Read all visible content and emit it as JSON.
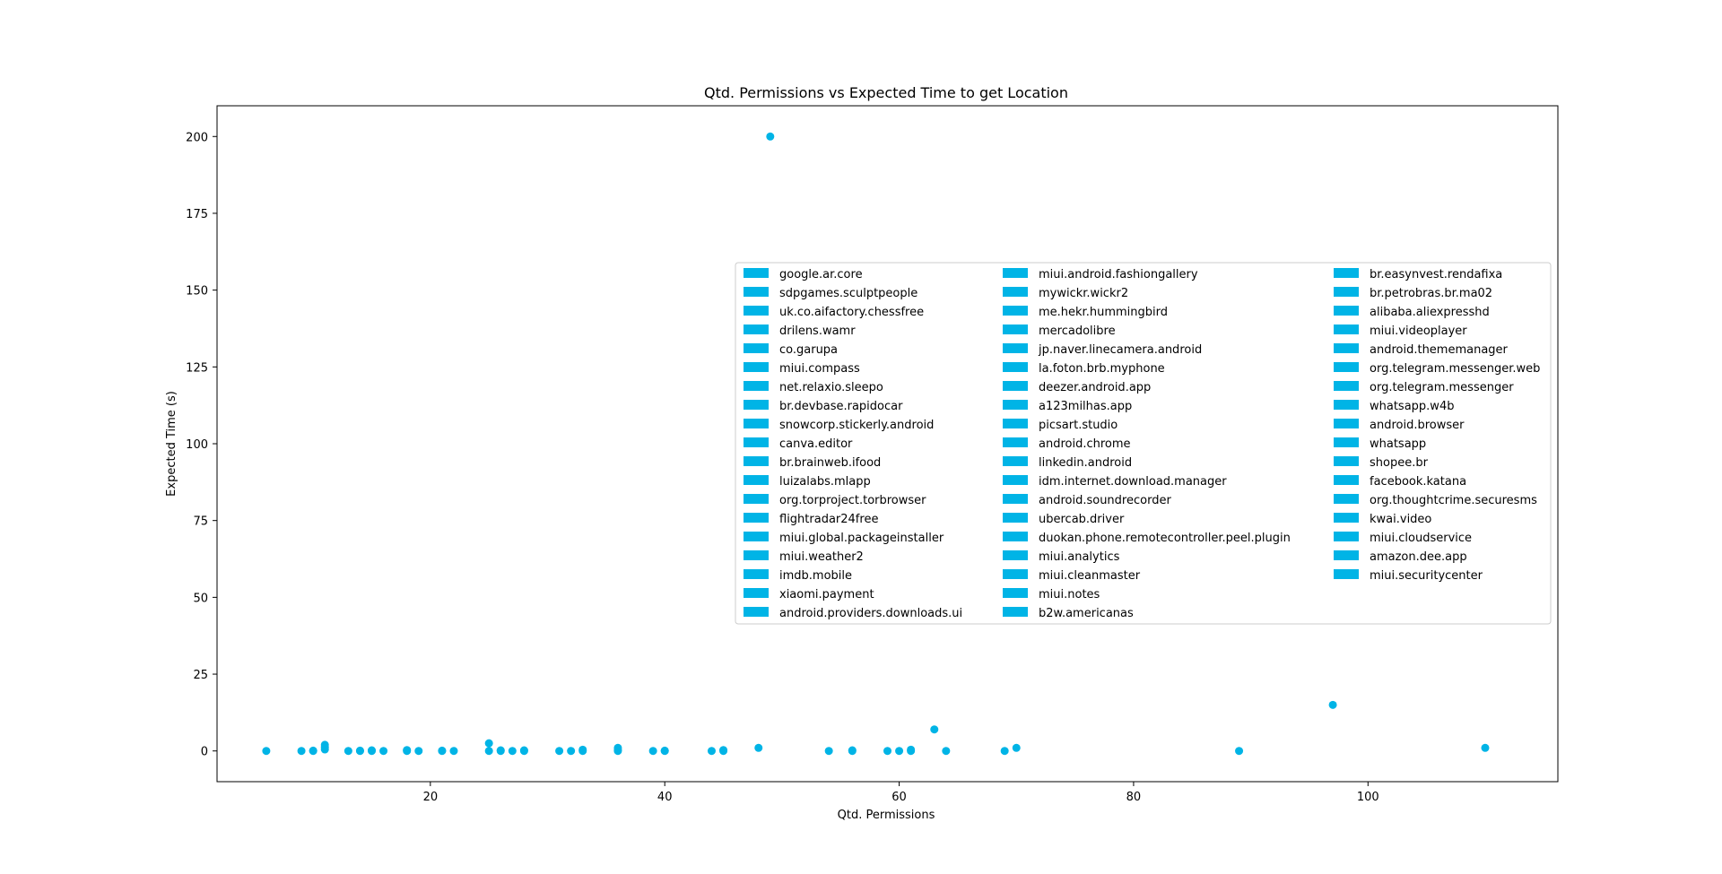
{
  "chart_data": {
    "type": "scatter",
    "title": "Qtd. Permissions vs Expected Time to get Location",
    "xlabel": "Qtd. Permissions",
    "ylabel": "Expected Time (s)",
    "xlim": [
      1.8,
      116.2
    ],
    "ylim": [
      -10,
      210
    ],
    "xticks": [
      20,
      40,
      60,
      80,
      100
    ],
    "yticks": [
      0,
      25,
      50,
      75,
      100,
      125,
      150,
      175,
      200
    ],
    "grid": false,
    "legend_position": "center-right",
    "legend_columns": 3,
    "marker_color": "#00b4e6",
    "series": [
      {
        "name": "google.ar.core",
        "x": [
          6
        ],
        "y": [
          0
        ]
      },
      {
        "name": "sdpgames.sculptpeople",
        "x": [
          9
        ],
        "y": [
          0
        ]
      },
      {
        "name": "uk.co.aifactory.chessfree",
        "x": [
          10
        ],
        "y": [
          0
        ]
      },
      {
        "name": "drilens.wamr",
        "x": [
          11
        ],
        "y": [
          0.5
        ]
      },
      {
        "name": "co.garupa",
        "x": [
          11
        ],
        "y": [
          2
        ]
      },
      {
        "name": "miui.compass",
        "x": [
          13
        ],
        "y": [
          0
        ]
      },
      {
        "name": "net.relaxio.sleepo",
        "x": [
          14
        ],
        "y": [
          0
        ]
      },
      {
        "name": "br.devbase.rapidocar",
        "x": [
          15
        ],
        "y": [
          0
        ]
      },
      {
        "name": "snowcorp.stickerly.android",
        "x": [
          16
        ],
        "y": [
          0
        ]
      },
      {
        "name": "canva.editor",
        "x": [
          18
        ],
        "y": [
          0.3
        ]
      },
      {
        "name": "br.brainweb.ifood",
        "x": [
          19
        ],
        "y": [
          0
        ]
      },
      {
        "name": "luizalabs.mlapp",
        "x": [
          21
        ],
        "y": [
          0
        ]
      },
      {
        "name": "org.torproject.torbrowser",
        "x": [
          22
        ],
        "y": [
          0
        ]
      },
      {
        "name": "flightradar24free",
        "x": [
          25
        ],
        "y": [
          2.5
        ]
      },
      {
        "name": "miui.global.packageinstaller",
        "x": [
          25
        ],
        "y": [
          0
        ]
      },
      {
        "name": "miui.weather2",
        "x": [
          26
        ],
        "y": [
          0
        ]
      },
      {
        "name": "imdb.mobile",
        "x": [
          27
        ],
        "y": [
          0
        ]
      },
      {
        "name": "xiaomi.payment",
        "x": [
          28
        ],
        "y": [
          0
        ]
      },
      {
        "name": "android.providers.downloads.ui",
        "x": [
          31
        ],
        "y": [
          0
        ]
      },
      {
        "name": "miui.android.fashiongallery",
        "x": [
          32
        ],
        "y": [
          0
        ]
      },
      {
        "name": "mywickr.wickr2",
        "x": [
          33
        ],
        "y": [
          0
        ]
      },
      {
        "name": "me.hekr.hummingbird",
        "x": [
          36
        ],
        "y": [
          1
        ]
      },
      {
        "name": "mercadolibre",
        "x": [
          36
        ],
        "y": [
          0
        ]
      },
      {
        "name": "jp.naver.linecamera.android",
        "x": [
          39
        ],
        "y": [
          0
        ]
      },
      {
        "name": "la.foton.brb.myphone",
        "x": [
          40
        ],
        "y": [
          0
        ]
      },
      {
        "name": "deezer.android.app",
        "x": [
          44
        ],
        "y": [
          0
        ]
      },
      {
        "name": "a123milhas.app",
        "x": [
          45
        ],
        "y": [
          0
        ]
      },
      {
        "name": "picsart.studio",
        "x": [
          48
        ],
        "y": [
          1
        ]
      },
      {
        "name": "android.chrome",
        "x": [
          49
        ],
        "y": [
          200
        ]
      },
      {
        "name": "linkedin.android",
        "x": [
          54
        ],
        "y": [
          0
        ]
      },
      {
        "name": "idm.internet.download.manager",
        "x": [
          56
        ],
        "y": [
          0
        ]
      },
      {
        "name": "android.soundrecorder",
        "x": [
          59
        ],
        "y": [
          0
        ]
      },
      {
        "name": "ubercab.driver",
        "x": [
          60
        ],
        "y": [
          0
        ]
      },
      {
        "name": "duokan.phone.remotecontroller.peel.plugin",
        "x": [
          61
        ],
        "y": [
          0
        ]
      },
      {
        "name": "miui.analytics",
        "x": [
          63
        ],
        "y": [
          7
        ]
      },
      {
        "name": "miui.cleanmaster",
        "x": [
          64
        ],
        "y": [
          0
        ]
      },
      {
        "name": "miui.notes",
        "x": [
          69
        ],
        "y": [
          0
        ]
      },
      {
        "name": "b2w.americanas",
        "x": [
          70
        ],
        "y": [
          1
        ]
      },
      {
        "name": "br.easynvest.rendafixa",
        "x": [
          89
        ],
        "y": [
          0
        ]
      },
      {
        "name": "br.petrobras.br.ma02",
        "x": [
          97
        ],
        "y": [
          15
        ]
      },
      {
        "name": "alibaba.aliexpresshd",
        "x": [
          110
        ],
        "y": [
          1
        ]
      },
      {
        "name": "miui.videoplayer",
        "x": [
          11
        ],
        "y": [
          1.2
        ]
      },
      {
        "name": "android.thememanager",
        "x": [
          18
        ],
        "y": [
          0
        ]
      },
      {
        "name": "org.telegram.messenger.web",
        "x": [
          26
        ],
        "y": [
          0.2
        ]
      },
      {
        "name": "org.telegram.messenger",
        "x": [
          33
        ],
        "y": [
          0.4
        ]
      },
      {
        "name": "whatsapp.w4b",
        "x": [
          45
        ],
        "y": [
          0.3
        ]
      },
      {
        "name": "android.browser",
        "x": [
          61
        ],
        "y": [
          0.4
        ]
      },
      {
        "name": "whatsapp",
        "x": [
          36
        ],
        "y": [
          0.3
        ]
      },
      {
        "name": "shopee.br",
        "x": [
          21
        ],
        "y": [
          0.1
        ]
      },
      {
        "name": "facebook.katana",
        "x": [
          28
        ],
        "y": [
          0.2
        ]
      },
      {
        "name": "org.thoughtcrime.securesms",
        "x": [
          40
        ],
        "y": [
          0.1
        ]
      },
      {
        "name": "kwai.video",
        "x": [
          56
        ],
        "y": [
          0.2
        ]
      },
      {
        "name": "miui.cloudservice",
        "x": [
          15
        ],
        "y": [
          0.2
        ]
      },
      {
        "name": "amazon.dee.app",
        "x": [
          14
        ],
        "y": [
          0.1
        ]
      },
      {
        "name": "miui.securitycenter",
        "x": [
          10
        ],
        "y": [
          0.1
        ]
      }
    ]
  }
}
